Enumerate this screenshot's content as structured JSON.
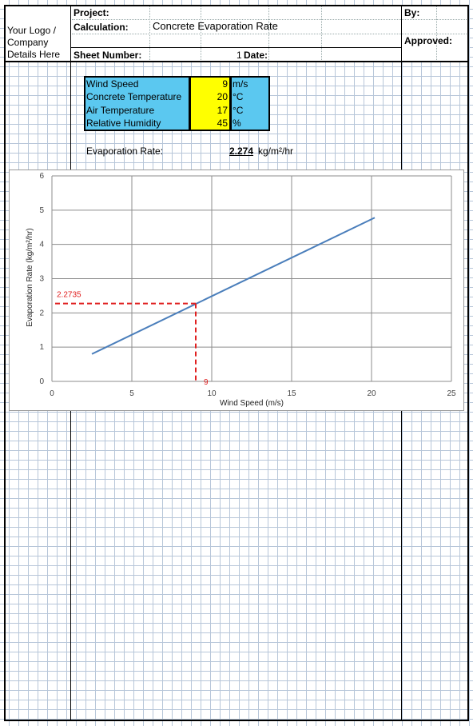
{
  "header": {
    "company_text": [
      "Your Logo /",
      "Company",
      "Details Here"
    ],
    "project_label": "Project:",
    "by_label": "By:",
    "calculation_label": "Calculation:",
    "calculation_value": "Concrete Evaporation Rate",
    "approved_label": "Approved:",
    "sheet_number_label": "Sheet Number:",
    "sheet_number_value": "1",
    "date_label": "Date:"
  },
  "inputs": {
    "rows": [
      {
        "label": "Wind Speed",
        "value": "9",
        "unit": "m/s"
      },
      {
        "label": "Concrete Temperature",
        "value": "20",
        "unit": "°C"
      },
      {
        "label": "Air Temperature",
        "value": "17",
        "unit": "°C"
      },
      {
        "label": "Relative Humidity",
        "value": "45",
        "unit": "%"
      }
    ],
    "colors": {
      "label_bg": "#5bc8f0",
      "value_bg": "#ffff00"
    }
  },
  "result": {
    "label": "Evaporation Rate:",
    "value": "2.274",
    "unit": "kg/m²/hr"
  },
  "chart_data": {
    "type": "line",
    "xlabel": "Wind Speed (m/s)",
    "ylabel": "Evaporation Rate (kg/m²/hr)",
    "xlim": [
      0,
      25
    ],
    "ylim": [
      0,
      6
    ],
    "xticks": [
      "0",
      "5",
      "10",
      "15",
      "20",
      "25"
    ],
    "yticks": [
      "0",
      "1",
      "2",
      "3",
      "4",
      "5",
      "6"
    ],
    "grid": true,
    "series": [
      {
        "x": [
          2.5,
          20.2
        ],
        "y": [
          0.8,
          4.78
        ],
        "color": "#4a7ebb"
      }
    ],
    "marker": {
      "x": 9,
      "y": 2.2735,
      "x_label": "9",
      "y_label": "2.2735",
      "color": "#e02020"
    }
  }
}
